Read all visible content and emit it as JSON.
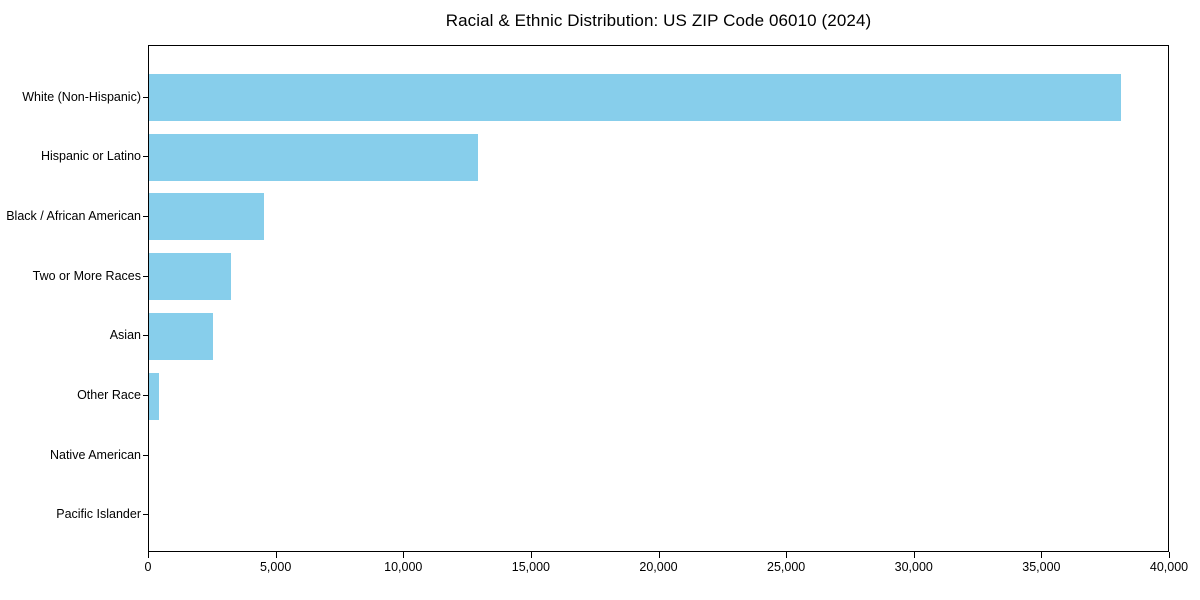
{
  "chart_data": {
    "type": "bar",
    "orientation": "horizontal",
    "title": "Racial & Ethnic Distribution: US ZIP Code 06010 (2024)",
    "xlabel": "",
    "ylabel": "",
    "categories": [
      "White (Non-Hispanic)",
      "Hispanic or Latino",
      "Black / African American",
      "Two or More Races",
      "Asian",
      "Other Race",
      "Native American",
      "Pacific Islander"
    ],
    "values": [
      38150,
      12920,
      4500,
      3210,
      2510,
      400,
      0,
      0
    ],
    "xlim": [
      0,
      40000
    ],
    "x_ticks": [
      0,
      5000,
      10000,
      15000,
      20000,
      25000,
      30000,
      35000,
      40000
    ],
    "x_tick_labels": [
      "0",
      "5,000",
      "10,000",
      "15,000",
      "20,000",
      "25,000",
      "30,000",
      "35,000",
      "40,000"
    ],
    "bar_color": "#87CEEB",
    "grid": false,
    "legend": false,
    "axis_color": "#000000",
    "text_color": "#000000",
    "background_color": "#ffffff"
  }
}
